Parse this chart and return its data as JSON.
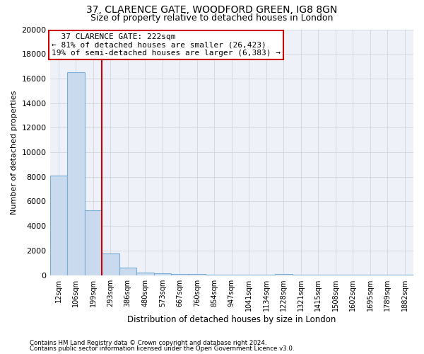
{
  "title1": "37, CLARENCE GATE, WOODFORD GREEN, IG8 8GN",
  "title2": "Size of property relative to detached houses in London",
  "xlabel": "Distribution of detached houses by size in London",
  "ylabel": "Number of detached properties",
  "categories": [
    "12sqm",
    "106sqm",
    "199sqm",
    "293sqm",
    "386sqm",
    "480sqm",
    "573sqm",
    "667sqm",
    "760sqm",
    "854sqm",
    "947sqm",
    "1041sqm",
    "1134sqm",
    "1228sqm",
    "1321sqm",
    "1415sqm",
    "1508sqm",
    "1602sqm",
    "1695sqm",
    "1789sqm",
    "1882sqm"
  ],
  "values": [
    8100,
    16500,
    5300,
    1750,
    600,
    200,
    150,
    80,
    80,
    20,
    20,
    20,
    20,
    70,
    20,
    20,
    20,
    20,
    20,
    20,
    20
  ],
  "bar_color": "#c9d9ee",
  "bar_edge_color": "#7aaed6",
  "vline_x": 2.5,
  "vline_color": "#cc0000",
  "annotation_text": "  37 CLARENCE GATE: 222sqm\n← 81% of detached houses are smaller (26,423)\n19% of semi-detached houses are larger (6,383) →",
  "annotation_box_color": "#ffffff",
  "annotation_box_edge": "#cc0000",
  "ylim": [
    0,
    20000
  ],
  "yticks": [
    0,
    2000,
    4000,
    6000,
    8000,
    10000,
    12000,
    14000,
    16000,
    18000,
    20000
  ],
  "footnote1": "Contains HM Land Registry data © Crown copyright and database right 2024.",
  "footnote2": "Contains public sector information licensed under the Open Government Licence v3.0.",
  "bg_color": "#ffffff",
  "grid_color": "#c8d0d8",
  "title1_fontsize": 10,
  "title2_fontsize": 9,
  "annot_fontsize": 8
}
